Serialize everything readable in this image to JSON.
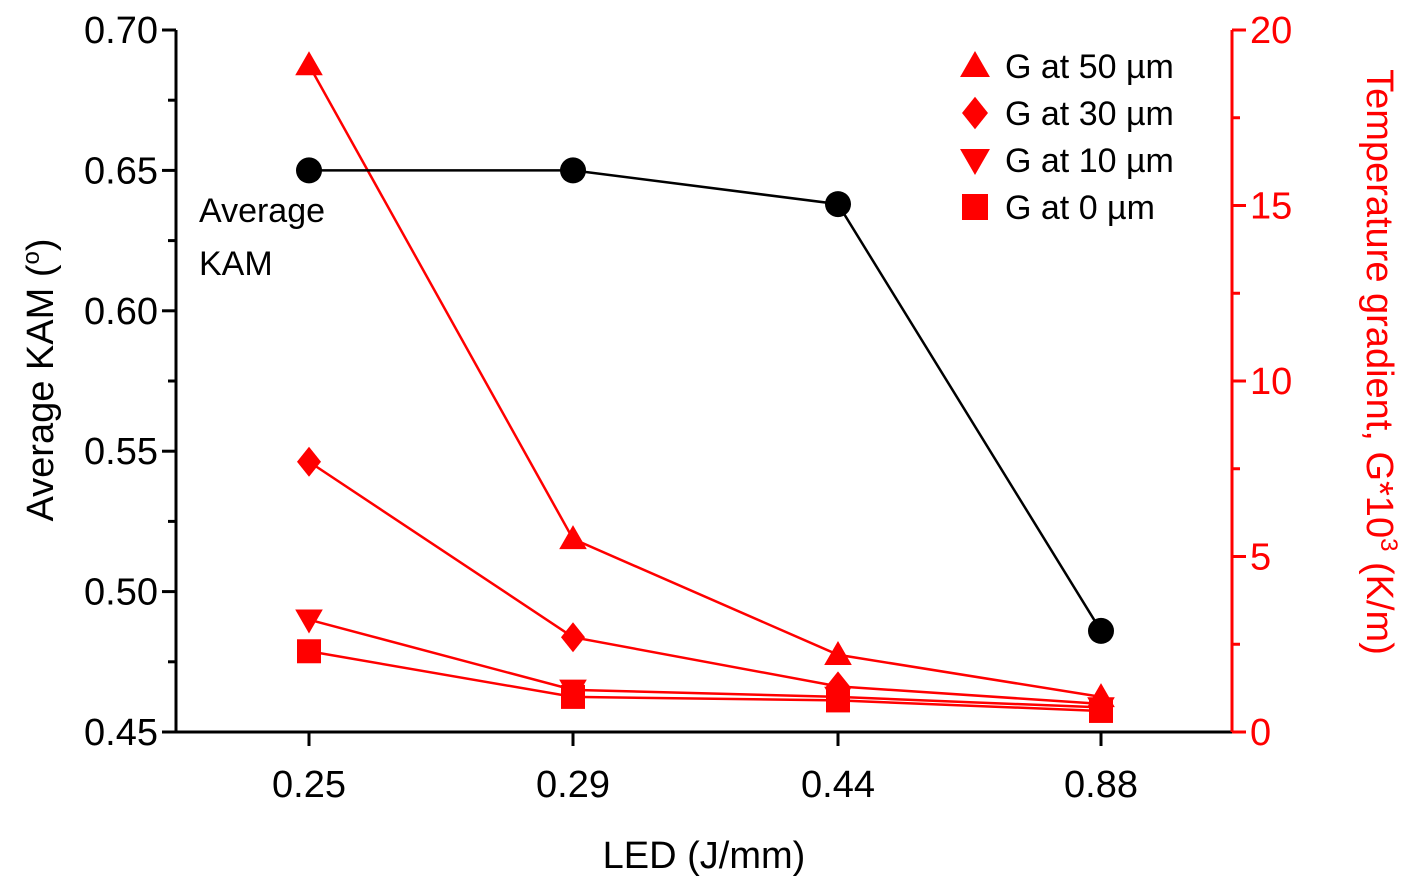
{
  "chart_data": {
    "type": "line",
    "title": "",
    "categories": [
      "0.25",
      "0.29",
      "0.44",
      "0.88"
    ],
    "xlabel": "LED (J/mm)",
    "y_left": {
      "label_main": "Average  KAM (",
      "label_sup": "o",
      "label_end": ")",
      "lim": [
        0.45,
        0.7
      ],
      "ticks": [
        "0.45",
        "0.50",
        "0.55",
        "0.60",
        "0.65",
        "0.70"
      ],
      "color": "#000000"
    },
    "y_right": {
      "label_main": "Temperature gradient, G*10",
      "label_sup": "3",
      "label_end": " (K/m)",
      "lim": [
        0,
        20
      ],
      "ticks": [
        "0",
        "5",
        "10",
        "15",
        "20"
      ],
      "color": "#ff0000"
    },
    "annotation": {
      "line1": "Average",
      "line2": "KAM"
    },
    "kam_series": {
      "values": [
        0.65,
        0.65,
        0.638,
        0.486
      ],
      "color": "#000000",
      "marker": "circle"
    },
    "series": [
      {
        "name": "G at 50 µm",
        "values": [
          19.0,
          5.5,
          2.2,
          1.0
        ],
        "marker": "triangle-up",
        "color": "#ff0000"
      },
      {
        "name": "G at 30 µm",
        "values": [
          7.7,
          2.7,
          1.3,
          0.8
        ],
        "marker": "diamond",
        "color": "#ff0000"
      },
      {
        "name": "G at 10 µm",
        "values": [
          3.2,
          1.2,
          1.0,
          0.7
        ],
        "marker": "triangle-down",
        "color": "#ff0000"
      },
      {
        "name": "G at 0 µm",
        "values": [
          2.3,
          1.0,
          0.9,
          0.6
        ],
        "marker": "square",
        "color": "#ff0000"
      }
    ],
    "legend_position": "top-right",
    "grid": false
  }
}
